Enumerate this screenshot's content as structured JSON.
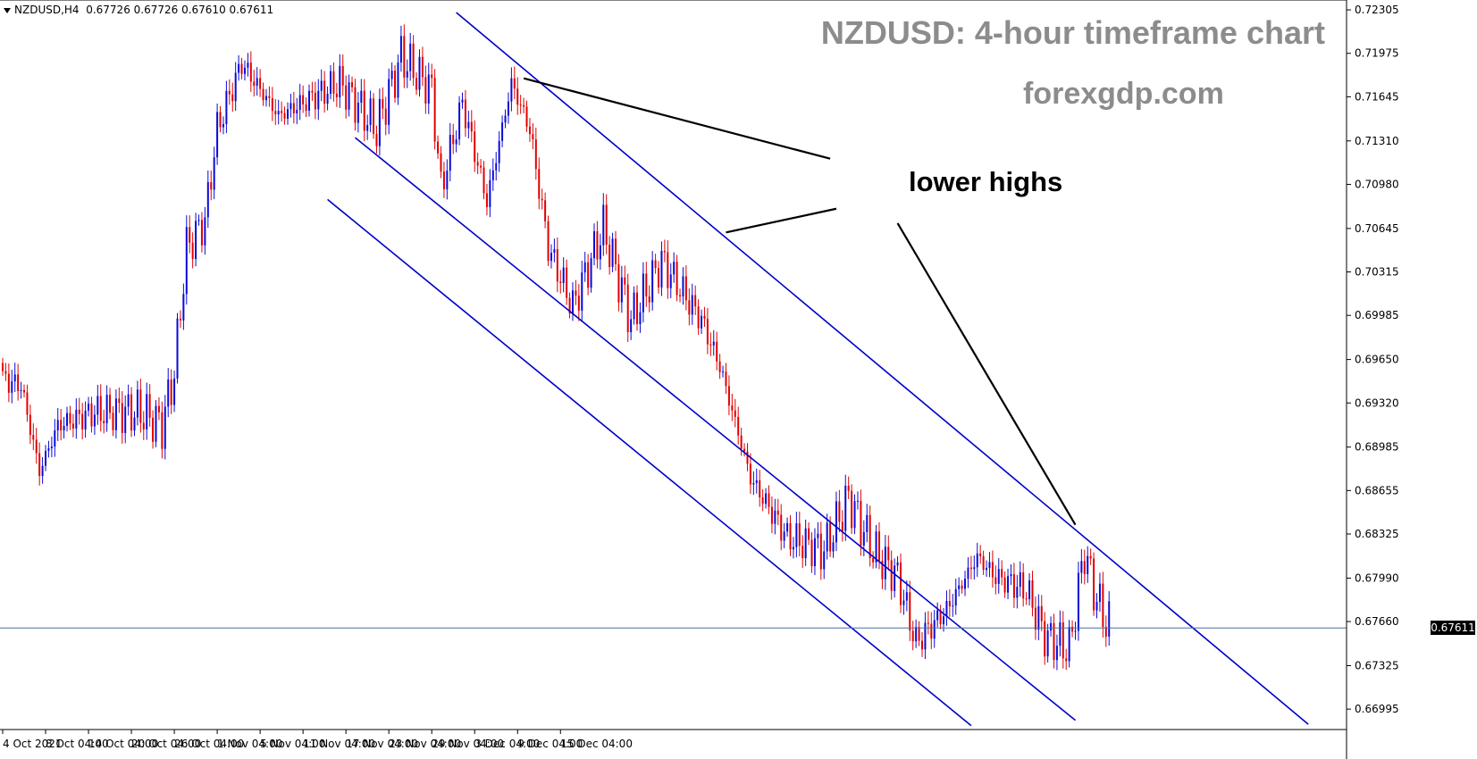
{
  "symbol_info": {
    "symbol": "NZDUSD,H4",
    "prices": "0.67726 0.67726 0.67610 0.67611"
  },
  "title": "NZDUSD: 4-hour timeframe chart",
  "website": "forexgdp.com",
  "annotation": "lower highs",
  "current_price_label": "0.67611",
  "colors": {
    "bull": "#0a0ad8",
    "bear": "#e00000",
    "channel": "#0000c8",
    "annotation_line": "#000000",
    "current_price_line": "#4a6ea0"
  },
  "chart_data": {
    "type": "candlestick",
    "x_tick_labels": [
      "4 Oct 2021",
      "8 Oct 04:00",
      "14 Oct 04:00",
      "20 Oct 04:00",
      "26 Oct 04:00",
      "1 Nov 04:00",
      "5 Nov 04:00",
      "11 Nov 04:00",
      "17 Nov 04:00",
      "23 Nov 04:00",
      "29 Nov 04:00",
      "3 Dec 04:00",
      "9 Dec 04:00",
      "15 Dec 04:00"
    ],
    "y_tick_labels": [
      "0.72305",
      "0.71975",
      "0.71645",
      "0.71310",
      "0.70980",
      "0.70645",
      "0.70315",
      "0.69985",
      "0.69650",
      "0.69320",
      "0.68985",
      "0.68655",
      "0.68325",
      "0.67990",
      "0.67660",
      "0.67325",
      "0.66995"
    ],
    "ylim": [
      0.6684,
      0.7238
    ],
    "current_price": 0.67611,
    "anchor_closes": [
      [
        0,
        0.695
      ],
      [
        6,
        0.6945
      ],
      [
        12,
        0.688
      ],
      [
        18,
        0.6915
      ],
      [
        30,
        0.6925
      ],
      [
        45,
        0.6925
      ],
      [
        52,
        0.6915
      ],
      [
        56,
        0.6955
      ],
      [
        60,
        0.705
      ],
      [
        66,
        0.707
      ],
      [
        70,
        0.714
      ],
      [
        78,
        0.719
      ],
      [
        90,
        0.715
      ],
      [
        110,
        0.7175
      ],
      [
        122,
        0.714
      ],
      [
        130,
        0.7195
      ],
      [
        140,
        0.717
      ],
      [
        143,
        0.7095
      ],
      [
        150,
        0.716
      ],
      [
        158,
        0.7085
      ],
      [
        166,
        0.7175
      ],
      [
        172,
        0.714
      ],
      [
        178,
        0.705
      ],
      [
        186,
        0.7005
      ],
      [
        196,
        0.7065
      ],
      [
        205,
        0.6995
      ],
      [
        215,
        0.704
      ],
      [
        228,
        0.6995
      ],
      [
        234,
        0.696
      ],
      [
        244,
        0.6875
      ],
      [
        256,
        0.683
      ],
      [
        268,
        0.682
      ],
      [
        276,
        0.686
      ],
      [
        284,
        0.682
      ],
      [
        292,
        0.68
      ],
      [
        298,
        0.675
      ],
      [
        308,
        0.6775
      ],
      [
        318,
        0.6815
      ],
      [
        324,
        0.68
      ],
      [
        334,
        0.679
      ],
      [
        340,
        0.6755
      ],
      [
        348,
        0.6745
      ],
      [
        353,
        0.682
      ],
      [
        356,
        0.679
      ],
      [
        360,
        0.6765
      ]
    ],
    "channel_lines": [
      {
        "name": "upper",
        "x1": 148.0,
        "y1": 0.72285,
        "x2": 426.0,
        "y2": 0.6688
      },
      {
        "name": "middle",
        "x1": 115.0,
        "y1": 0.71335,
        "x2": 350.0,
        "y2": 0.6691
      },
      {
        "name": "lower",
        "x1": 106.0,
        "y1": 0.70865,
        "x2": 316.0,
        "y2": 0.6687
      }
    ],
    "annotation_lines": [
      {
        "x1": 170.0,
        "y1": 0.71785,
        "x2": 270.0,
        "y2": 0.71175
      },
      {
        "x1": 236.0,
        "y1": 0.70615,
        "x2": 272.0,
        "y2": 0.70795
      },
      {
        "x1": 292.0,
        "y1": 0.70685,
        "x2": 350.0,
        "y2": 0.68395
      }
    ]
  }
}
